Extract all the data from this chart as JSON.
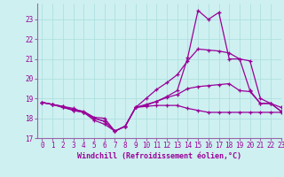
{
  "bg_color": "#cef0f0",
  "grid_color": "#aadddd",
  "line_color": "#990099",
  "marker": "+",
  "xlim": [
    -0.5,
    23
  ],
  "ylim": [
    17,
    23.8
  ],
  "yticks": [
    17,
    18,
    19,
    20,
    21,
    22,
    23
  ],
  "xticks": [
    0,
    1,
    2,
    3,
    4,
    5,
    6,
    7,
    8,
    9,
    10,
    11,
    12,
    13,
    14,
    15,
    16,
    17,
    18,
    19,
    20,
    21,
    22,
    23
  ],
  "xlabel": "Windchill (Refroidissement éolien,°C)",
  "series": [
    [
      18.8,
      18.7,
      18.6,
      18.5,
      18.3,
      18.0,
      17.85,
      17.35,
      17.6,
      18.55,
      18.6,
      18.65,
      18.65,
      18.65,
      18.5,
      18.4,
      18.3,
      18.3,
      18.3,
      18.3,
      18.3,
      18.3,
      18.3,
      18.3
    ],
    [
      18.8,
      18.7,
      18.6,
      18.4,
      18.3,
      17.9,
      17.7,
      17.35,
      17.6,
      18.55,
      18.65,
      18.85,
      19.1,
      19.4,
      21.05,
      23.45,
      23.0,
      23.35,
      21.0,
      21.0,
      19.4,
      18.75,
      18.75,
      18.35
    ],
    [
      18.8,
      18.7,
      18.55,
      18.45,
      18.35,
      18.05,
      18.0,
      17.35,
      17.6,
      18.55,
      19.0,
      19.45,
      19.8,
      20.2,
      20.9,
      21.5,
      21.45,
      21.4,
      21.3,
      21.0,
      20.9,
      19.0,
      18.75,
      18.55
    ],
    [
      18.8,
      18.7,
      18.55,
      18.4,
      18.3,
      18.0,
      17.85,
      17.35,
      17.6,
      18.55,
      18.7,
      18.85,
      19.05,
      19.2,
      19.5,
      19.6,
      19.65,
      19.7,
      19.75,
      19.4,
      19.35,
      18.75,
      18.75,
      18.35
    ]
  ]
}
